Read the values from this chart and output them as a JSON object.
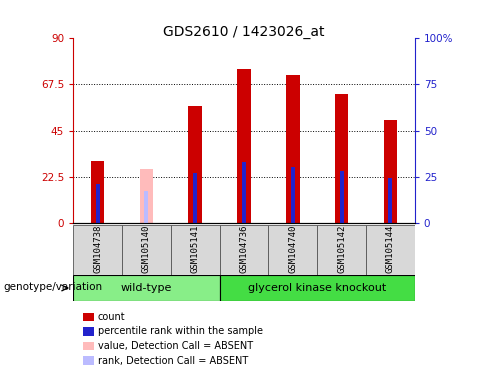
{
  "title": "GDS2610 / 1423026_at",
  "samples": [
    "GSM104738",
    "GSM105140",
    "GSM105141",
    "GSM104736",
    "GSM104740",
    "GSM105142",
    "GSM105144"
  ],
  "count_values": [
    30,
    0,
    57,
    75,
    72,
    63,
    50
  ],
  "rank_values": [
    21,
    0,
    27,
    33,
    30,
    28,
    24
  ],
  "absent_value": [
    0,
    26,
    0,
    0,
    0,
    0,
    0
  ],
  "absent_rank": [
    0,
    17,
    0,
    0,
    0,
    0,
    0
  ],
  "is_absent": [
    false,
    true,
    false,
    false,
    false,
    false,
    false
  ],
  "left_ylim": [
    0,
    90
  ],
  "right_ylim": [
    0,
    100
  ],
  "left_yticks": [
    0,
    22.5,
    45,
    67.5,
    90
  ],
  "left_yticklabels": [
    "0",
    "22.5",
    "45",
    "67.5",
    "90"
  ],
  "right_yticks": [
    0,
    25,
    50,
    75,
    100
  ],
  "right_yticklabels": [
    "0",
    "25",
    "50",
    "75",
    "100%"
  ],
  "color_count": "#cc0000",
  "color_rank": "#2222cc",
  "color_absent_value": "#ffbbbb",
  "color_absent_rank": "#bbbbff",
  "color_wildtype": "#88ee88",
  "color_knockout": "#44dd44",
  "bg_color": "#d8d8d8",
  "group_label": "genotype/variation"
}
